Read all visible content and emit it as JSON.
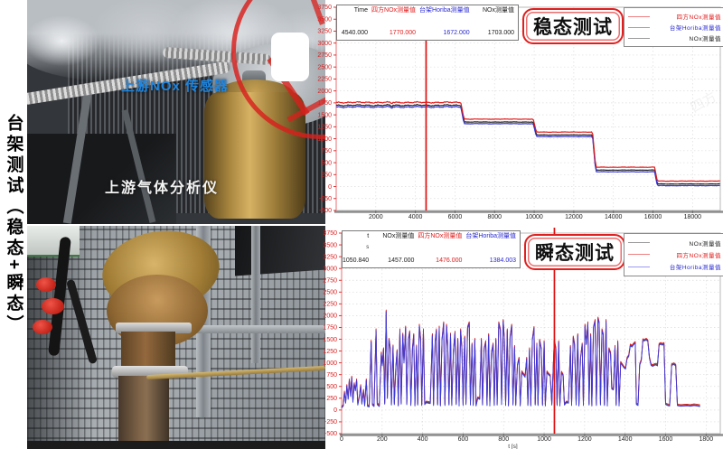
{
  "page": {
    "vertical_title": "台架测试（稳态+瞬态）"
  },
  "photos": {
    "top": {
      "sensor_label": "上游NOx 传感器",
      "analyzer_label": "上游气体分析仪"
    }
  },
  "colors": {
    "tick_red": "#dd2020",
    "cursor_red": "#e01010",
    "series_red": "#e01b1b",
    "series_blue": "#3232d0",
    "series_black": "#222222",
    "title_border": "#e02020"
  },
  "steady": {
    "title": "稳态测试",
    "header": {
      "cols": [
        {
          "label": "Time",
          "value": "4540.000",
          "color": "#1a1a1a"
        },
        {
          "label": "四方NOx测量值",
          "value": "1770.000",
          "color": "#e01b1b"
        },
        {
          "label": "台架Horiba测量值",
          "value": "1672.000",
          "color": "#2a2ad0"
        },
        {
          "label": "NOx测量值",
          "value": "1703.000",
          "color": "#1a1a1a"
        }
      ]
    },
    "legend": [
      {
        "label": "四方NOx测量值",
        "line_color": "#ee8080",
        "text_color": "#e01b1b"
      },
      {
        "label": "台架Horiba测量值",
        "line_color": "#9a9af0",
        "text_color": "#2a2ad0"
      },
      {
        "label": "NOx测量值",
        "line_color": "#9a9a9a",
        "text_color": "#1a1a1a"
      }
    ]
  },
  "transient": {
    "title": "瞬态测试",
    "header": {
      "cols": [
        {
          "label": "t",
          "sub": "s",
          "value": "1050.840",
          "color": "#1a1a1a"
        },
        {
          "label": "NOx测量值",
          "value": "1457.000",
          "color": "#1a1a1a"
        },
        {
          "label": "四方NOx测量值",
          "value": "1476.000",
          "color": "#e01b1b"
        },
        {
          "label": "台架Horiba测量值",
          "value": "1384.003",
          "color": "#2a2ad0"
        }
      ]
    },
    "legend": [
      {
        "label": "NOx测量值",
        "line_color": "#9a9a9a",
        "text_color": "#1a1a1a"
      },
      {
        "label": "四方NOx测量值",
        "line_color": "#ee8080",
        "text_color": "#e01b1b"
      },
      {
        "label": "台架Horiba测量值",
        "line_color": "#9a9af0",
        "text_color": "#2a2ad0"
      }
    ]
  },
  "chart_data": [
    {
      "id": "steady",
      "type": "line",
      "title": "稳态测试",
      "xlabel": "",
      "ylabel": "",
      "xlim": [
        0,
        19400
      ],
      "ylim": [
        -500,
        3750
      ],
      "xticks": [
        2000,
        4000,
        6000,
        8000,
        10000,
        12000,
        14000,
        16000,
        18000
      ],
      "ytick_step": 250,
      "grid": true,
      "legend_position": "top-right",
      "cursor_x": 4540,
      "cursor_values": {
        "Time": 4540.0,
        "四方NOx测量值": 1770.0,
        "台架Horiba测量值": 1672.0,
        "NOx测量值": 1703.0
      },
      "series": [
        {
          "name": "NOx测量值",
          "color": "#222222",
          "offset": 0
        },
        {
          "name": "台架Horiba测量值",
          "color": "#3232d0",
          "offset": -35
        },
        {
          "name": "四方NOx测量值",
          "color": "#e01b1b",
          "offset": 60
        }
      ],
      "steps": [
        [
          0,
          1700
        ],
        [
          2750,
          1700
        ],
        [
          2790,
          1630
        ],
        [
          2830,
          1700
        ],
        [
          6300,
          1700
        ],
        [
          6460,
          1350
        ],
        [
          9950,
          1350
        ],
        [
          10110,
          1080
        ],
        [
          12950,
          1080
        ],
        [
          13110,
          345
        ],
        [
          16080,
          345
        ],
        [
          16220,
          55
        ],
        [
          19380,
          55
        ]
      ]
    },
    {
      "id": "transient",
      "type": "line",
      "title": "瞬态测试",
      "xlabel": "t [s]",
      "ylabel": "",
      "xlim": [
        0,
        1870
      ],
      "ylim": [
        -500,
        3750
      ],
      "xticks": [
        0,
        200,
        400,
        600,
        800,
        1000,
        1200,
        1400,
        1600,
        1800,
        2000
      ],
      "ytick_step": 250,
      "grid": true,
      "legend_position": "top-right",
      "cursor_x": 1050.84,
      "cursor_values": {
        "t": 1050.84,
        "NOx测量值": 1457.0,
        "四方NOx测量值": 1476.0,
        "台架Horiba测量值": 1384.003
      },
      "series": [
        {
          "name": "NOx测量值",
          "color": "#444444",
          "offset": 0
        },
        {
          "name": "四方NOx测量值",
          "color": "#e01b1b",
          "offset": 20
        },
        {
          "name": "台架Horiba测量值",
          "color": "#3a3ae0",
          "offset": -15
        }
      ],
      "points": [
        [
          0,
          60
        ],
        [
          8,
          95
        ],
        [
          14,
          380
        ],
        [
          20,
          160
        ],
        [
          26,
          520
        ],
        [
          32,
          240
        ],
        [
          38,
          640
        ],
        [
          44,
          300
        ],
        [
          50,
          700
        ],
        [
          56,
          180
        ],
        [
          62,
          560
        ],
        [
          68,
          420
        ],
        [
          74,
          640
        ],
        [
          80,
          120
        ],
        [
          88,
          300
        ],
        [
          94,
          520
        ],
        [
          100,
          140
        ],
        [
          108,
          420
        ],
        [
          114,
          100
        ],
        [
          122,
          640
        ],
        [
          128,
          90
        ],
        [
          136,
          80
        ],
        [
          146,
          1460
        ],
        [
          152,
          120
        ],
        [
          160,
          90
        ],
        [
          170,
          1700
        ],
        [
          176,
          130
        ],
        [
          186,
          90
        ],
        [
          196,
          1210
        ],
        [
          201,
          950
        ],
        [
          207,
          1300
        ],
        [
          213,
          140
        ],
        [
          220,
          2100
        ],
        [
          226,
          260
        ],
        [
          234,
          1500
        ],
        [
          240,
          1310
        ],
        [
          246,
          120
        ],
        [
          254,
          1360
        ],
        [
          260,
          130
        ],
        [
          268,
          910
        ],
        [
          274,
          1260
        ],
        [
          280,
          100
        ],
        [
          288,
          1700
        ],
        [
          294,
          140
        ],
        [
          302,
          1610
        ],
        [
          308,
          1010
        ],
        [
          316,
          1760
        ],
        [
          322,
          130
        ],
        [
          330,
          1500
        ],
        [
          336,
          1660
        ],
        [
          342,
          110
        ],
        [
          350,
          1310
        ],
        [
          356,
          1600
        ],
        [
          362,
          100
        ],
        [
          370,
          1360
        ],
        [
          376,
          120
        ],
        [
          384,
          1800
        ],
        [
          390,
          1510
        ],
        [
          396,
          110
        ],
        [
          404,
          1700
        ],
        [
          410,
          130
        ],
        [
          418,
          170
        ],
        [
          428,
          160
        ],
        [
          438,
          150
        ],
        [
          448,
          1600
        ],
        [
          454,
          110
        ],
        [
          462,
          1450
        ],
        [
          468,
          1700
        ],
        [
          474,
          120
        ],
        [
          482,
          1760
        ],
        [
          488,
          100
        ],
        [
          496,
          1500
        ],
        [
          504,
          1850
        ],
        [
          510,
          110
        ],
        [
          518,
          1800
        ],
        [
          524,
          1400
        ],
        [
          530,
          120
        ],
        [
          538,
          1610
        ],
        [
          544,
          110
        ],
        [
          552,
          1260
        ],
        [
          560,
          1650
        ],
        [
          566,
          130
        ],
        [
          574,
          1500
        ],
        [
          580,
          100
        ],
        [
          588,
          1700
        ],
        [
          594,
          1300
        ],
        [
          600,
          110
        ],
        [
          608,
          1550
        ],
        [
          614,
          130
        ],
        [
          622,
          1750
        ],
        [
          630,
          1850
        ],
        [
          636,
          120
        ],
        [
          644,
          1400
        ],
        [
          650,
          110
        ],
        [
          658,
          1500
        ],
        [
          664,
          100
        ],
        [
          672,
          260
        ],
        [
          682,
          240
        ],
        [
          690,
          1500
        ],
        [
          696,
          120
        ],
        [
          704,
          1300
        ],
        [
          712,
          1450
        ],
        [
          718,
          110
        ],
        [
          726,
          1600
        ],
        [
          732,
          100
        ],
        [
          740,
          1210
        ],
        [
          748,
          1400
        ],
        [
          754,
          110
        ],
        [
          762,
          1500
        ],
        [
          768,
          120
        ],
        [
          776,
          1850
        ],
        [
          784,
          1700
        ],
        [
          790,
          130
        ],
        [
          798,
          1900
        ],
        [
          804,
          1500
        ],
        [
          810,
          110
        ],
        [
          818,
          1700
        ],
        [
          824,
          100
        ],
        [
          832,
          1550
        ],
        [
          840,
          1800
        ],
        [
          846,
          120
        ],
        [
          854,
          1350
        ],
        [
          860,
          110
        ],
        [
          868,
          950
        ],
        [
          876,
          1100
        ],
        [
          882,
          100
        ],
        [
          890,
          810
        ],
        [
          898,
          760
        ],
        [
          906,
          710
        ],
        [
          914,
          1100
        ],
        [
          920,
          110
        ],
        [
          928,
          1300
        ],
        [
          934,
          100
        ],
        [
          942,
          1500
        ],
        [
          950,
          1750
        ],
        [
          956,
          120
        ],
        [
          964,
          1400
        ],
        [
          970,
          110
        ],
        [
          978,
          1480
        ],
        [
          986,
          1300
        ],
        [
          992,
          110
        ],
        [
          1000,
          1450
        ],
        [
          1006,
          100
        ],
        [
          1014,
          810
        ],
        [
          1022,
          760
        ],
        [
          1030,
          730
        ],
        [
          1038,
          120
        ],
        [
          1050,
          1476
        ],
        [
          1058,
          1300
        ],
        [
          1064,
          110
        ],
        [
          1072,
          1450
        ],
        [
          1078,
          100
        ],
        [
          1086,
          800
        ],
        [
          1094,
          740
        ],
        [
          1100,
          120
        ],
        [
          1110,
          170
        ],
        [
          1120,
          160
        ],
        [
          1130,
          1350
        ],
        [
          1136,
          110
        ],
        [
          1144,
          1550
        ],
        [
          1150,
          1400
        ],
        [
          1158,
          120
        ],
        [
          1166,
          1600
        ],
        [
          1172,
          100
        ],
        [
          1180,
          1100
        ],
        [
          1188,
          1400
        ],
        [
          1194,
          110
        ],
        [
          1202,
          1800
        ],
        [
          1208,
          1400
        ],
        [
          1216,
          1850
        ],
        [
          1222,
          120
        ],
        [
          1230,
          1600
        ],
        [
          1236,
          100
        ],
        [
          1244,
          1750
        ],
        [
          1252,
          1900
        ],
        [
          1258,
          110
        ],
        [
          1266,
          1950
        ],
        [
          1272,
          1850
        ],
        [
          1278,
          120
        ],
        [
          1286,
          1700
        ],
        [
          1292,
          1600
        ],
        [
          1298,
          110
        ],
        [
          1306,
          1900
        ],
        [
          1312,
          100
        ],
        [
          1320,
          1300
        ],
        [
          1328,
          1210
        ],
        [
          1334,
          460
        ],
        [
          1342,
          440
        ],
        [
          1350,
          1350
        ],
        [
          1356,
          110
        ],
        [
          1364,
          1450
        ],
        [
          1370,
          100
        ],
        [
          1378,
          1010
        ],
        [
          1386,
          960
        ],
        [
          1394,
          910
        ],
        [
          1402,
          880
        ],
        [
          1410,
          1100
        ],
        [
          1418,
          1150
        ],
        [
          1426,
          1380
        ],
        [
          1434,
          1350
        ],
        [
          1442,
          1400
        ],
        [
          1450,
          1430
        ],
        [
          1456,
          130
        ],
        [
          1464,
          110
        ],
        [
          1472,
          960
        ],
        [
          1480,
          1060
        ],
        [
          1488,
          1490
        ],
        [
          1496,
          1480
        ],
        [
          1504,
          1500
        ],
        [
          1512,
          1470
        ],
        [
          1520,
          1110
        ],
        [
          1528,
          960
        ],
        [
          1536,
          940
        ],
        [
          1544,
          960
        ],
        [
          1552,
          970
        ],
        [
          1560,
          950
        ],
        [
          1568,
          1390
        ],
        [
          1576,
          1410
        ],
        [
          1584,
          1390
        ],
        [
          1592,
          1410
        ],
        [
          1600,
          130
        ],
        [
          1610,
          110
        ],
        [
          1620,
          100
        ],
        [
          1630,
          960
        ],
        [
          1640,
          980
        ],
        [
          1650,
          950
        ],
        [
          1658,
          110
        ],
        [
          1666,
          100
        ],
        [
          1676,
          95
        ],
        [
          1690,
          100
        ],
        [
          1706,
          105
        ],
        [
          1722,
          95
        ],
        [
          1740,
          110
        ],
        [
          1756,
          100
        ],
        [
          1770,
          90
        ]
      ]
    }
  ]
}
